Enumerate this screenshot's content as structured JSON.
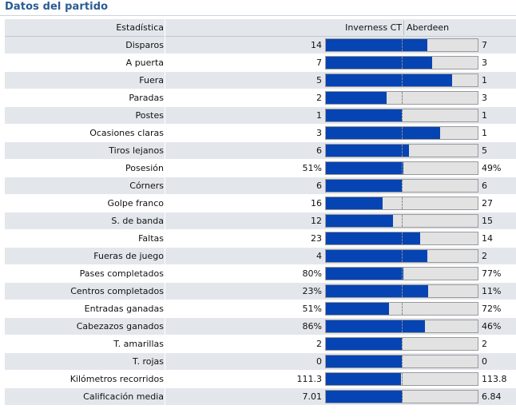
{
  "panel": {
    "title": "Datos del partido"
  },
  "table": {
    "headers": {
      "stat": "Estadística",
      "home": "Inverness CT",
      "away": "Aberdeen"
    },
    "rows": [
      {
        "label": "Disparos",
        "home": "14",
        "away": "7",
        "home_share": 0.667
      },
      {
        "label": "A puerta",
        "home": "7",
        "away": "3",
        "home_share": 0.7
      },
      {
        "label": "Fuera",
        "home": "5",
        "away": "1",
        "home_share": 0.833
      },
      {
        "label": "Paradas",
        "home": "2",
        "away": "3",
        "home_share": 0.4
      },
      {
        "label": "Postes",
        "home": "1",
        "away": "1",
        "home_share": 0.5
      },
      {
        "label": "Ocasiones claras",
        "home": "3",
        "away": "1",
        "home_share": 0.75
      },
      {
        "label": "Tiros lejanos",
        "home": "6",
        "away": "5",
        "home_share": 0.545
      },
      {
        "label": "Posesión",
        "home": "51%",
        "away": "49%",
        "home_share": 0.51
      },
      {
        "label": "Córners",
        "home": "6",
        "away": "6",
        "home_share": 0.5
      },
      {
        "label": "Golpe franco",
        "home": "16",
        "away": "27",
        "home_share": 0.372
      },
      {
        "label": "S. de banda",
        "home": "12",
        "away": "15",
        "home_share": 0.444
      },
      {
        "label": "Faltas",
        "home": "23",
        "away": "14",
        "home_share": 0.622
      },
      {
        "label": "Fueras de juego",
        "home": "4",
        "away": "2",
        "home_share": 0.667
      },
      {
        "label": "Pases completados",
        "home": "80%",
        "away": "77%",
        "home_share": 0.51
      },
      {
        "label": "Centros completados",
        "home": "23%",
        "away": "11%",
        "home_share": 0.676
      },
      {
        "label": "Entradas ganadas",
        "home": "51%",
        "away": "72%",
        "home_share": 0.415
      },
      {
        "label": "Cabezazos ganados",
        "home": "86%",
        "away": "46%",
        "home_share": 0.652
      },
      {
        "label": "T. amarillas",
        "home": "2",
        "away": "2",
        "home_share": 0.5
      },
      {
        "label": "T. rojas",
        "home": "0",
        "away": "0",
        "home_share": 0.5
      },
      {
        "label": "Kilómetros recorridos",
        "home": "111.3",
        "away": "113.8",
        "home_share": 0.494
      },
      {
        "label": "Calificación media",
        "home": "7.01",
        "away": "6.84",
        "home_share": 0.506
      }
    ]
  },
  "colors": {
    "home_bar": "#0644b3",
    "away_bar": "#e2e2e2",
    "title": "#2a5c94"
  }
}
